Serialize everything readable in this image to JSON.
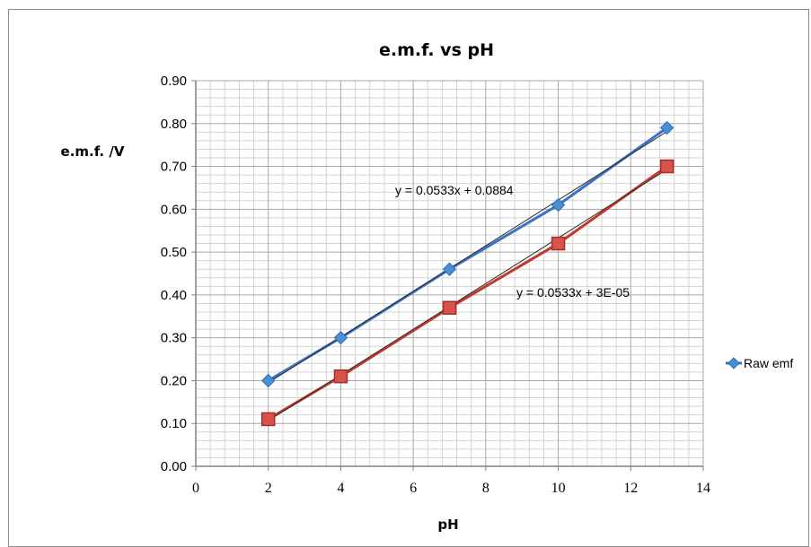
{
  "chart_data": {
    "type": "line",
    "title": "e.m.f. vs pH",
    "xlabel": "pH",
    "ylabel": "e.m.f. /V",
    "xlim": [
      0,
      14
    ],
    "ylim": [
      0,
      0.9
    ],
    "x_ticks": [
      "0",
      "2",
      "4",
      "6",
      "8",
      "10",
      "12",
      "14"
    ],
    "y_ticks": [
      "0.00",
      "0.10",
      "0.20",
      "0.30",
      "0.40",
      "0.50",
      "0.60",
      "0.70",
      "0.80",
      "0.90"
    ],
    "grid": true,
    "legend_position": "right",
    "series": [
      {
        "name": "Raw emf",
        "marker": "diamond",
        "color": "#4a8fd6",
        "line_color": "#3a72c4",
        "x": [
          2,
          4,
          7,
          10,
          13
        ],
        "y": [
          0.2,
          0.3,
          0.46,
          0.61,
          0.79
        ],
        "trendline": {
          "slope": 0.0533,
          "intercept": 0.0884,
          "label": "y = 0.0533x + 0.0884"
        }
      },
      {
        "marker": "square",
        "color": "#d9534a",
        "line_color": "#c0392b",
        "x": [
          2,
          4,
          7,
          10,
          13
        ],
        "y": [
          0.11,
          0.21,
          0.37,
          0.52,
          0.7
        ],
        "trendline": {
          "slope": 0.0533,
          "intercept": 3e-05,
          "label": "y = 0.0533x + 3E-05"
        }
      }
    ]
  }
}
